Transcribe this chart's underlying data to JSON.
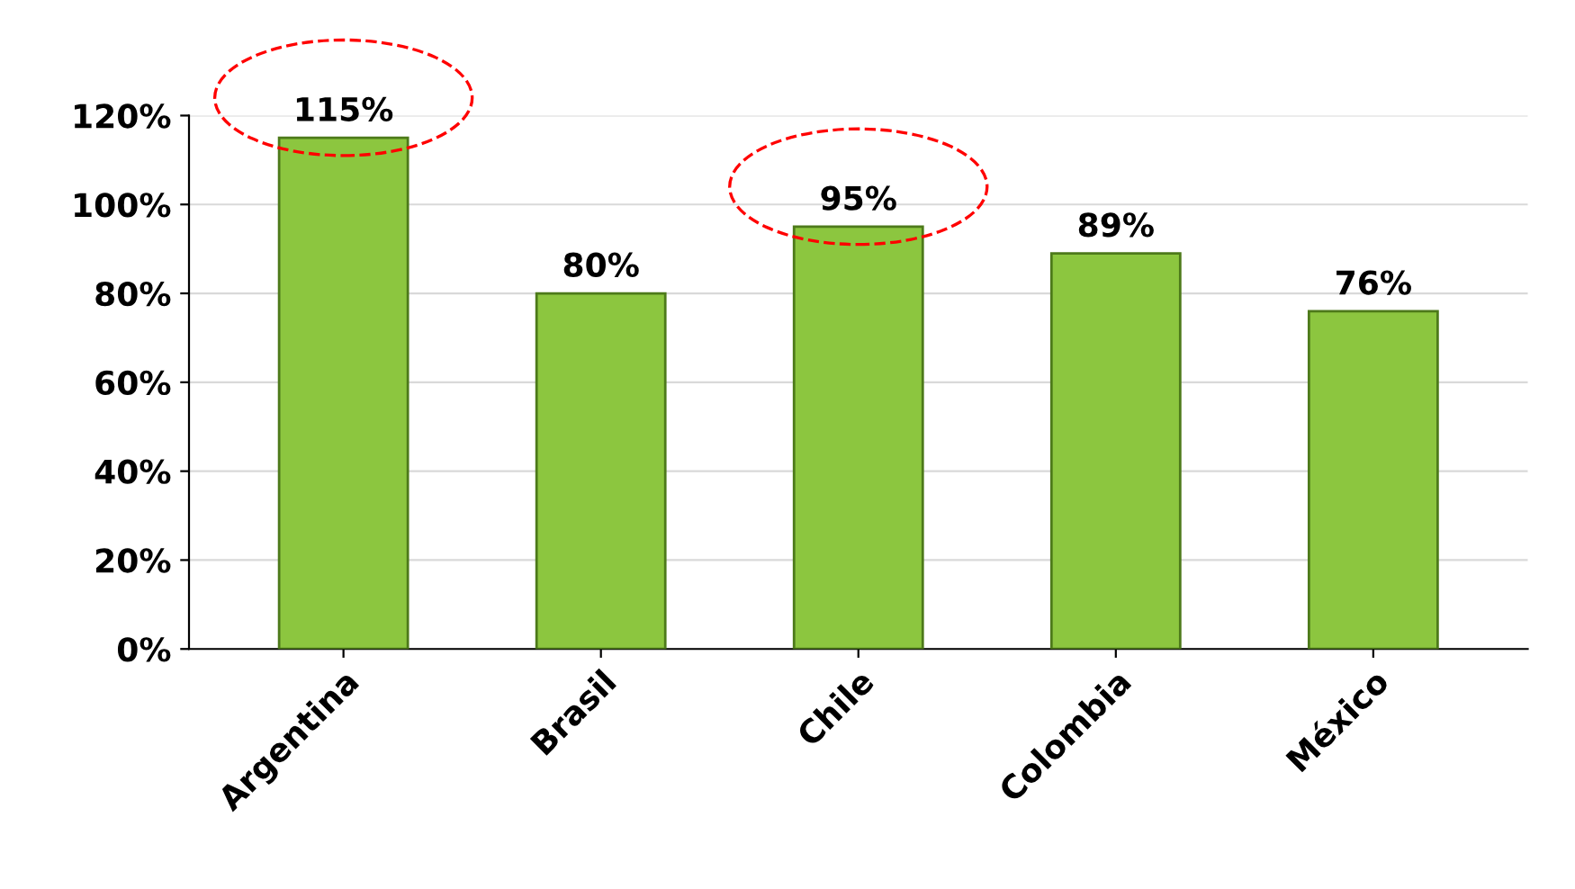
{
  "chart_data": {
    "type": "bar",
    "categories": [
      "Argentina",
      "Brasil",
      "Chile",
      "Colombia",
      "México"
    ],
    "values": [
      115,
      80,
      95,
      89,
      76
    ],
    "color": "#8cc63f",
    "value_labels": [
      "115%",
      "80%",
      "95%",
      "89%",
      "76%"
    ],
    "ylim": [
      0,
      120
    ],
    "yticks": [
      {
        "value": 0,
        "label": "0%"
      },
      {
        "value": 20,
        "label": "20%"
      },
      {
        "value": 40,
        "label": "40%"
      },
      {
        "value": 60,
        "label": "60%"
      },
      {
        "value": 80,
        "label": "80%"
      },
      {
        "value": 100,
        "label": "100%"
      },
      {
        "value": 120,
        "label": "120%"
      }
    ],
    "grid": "y"
  }
}
